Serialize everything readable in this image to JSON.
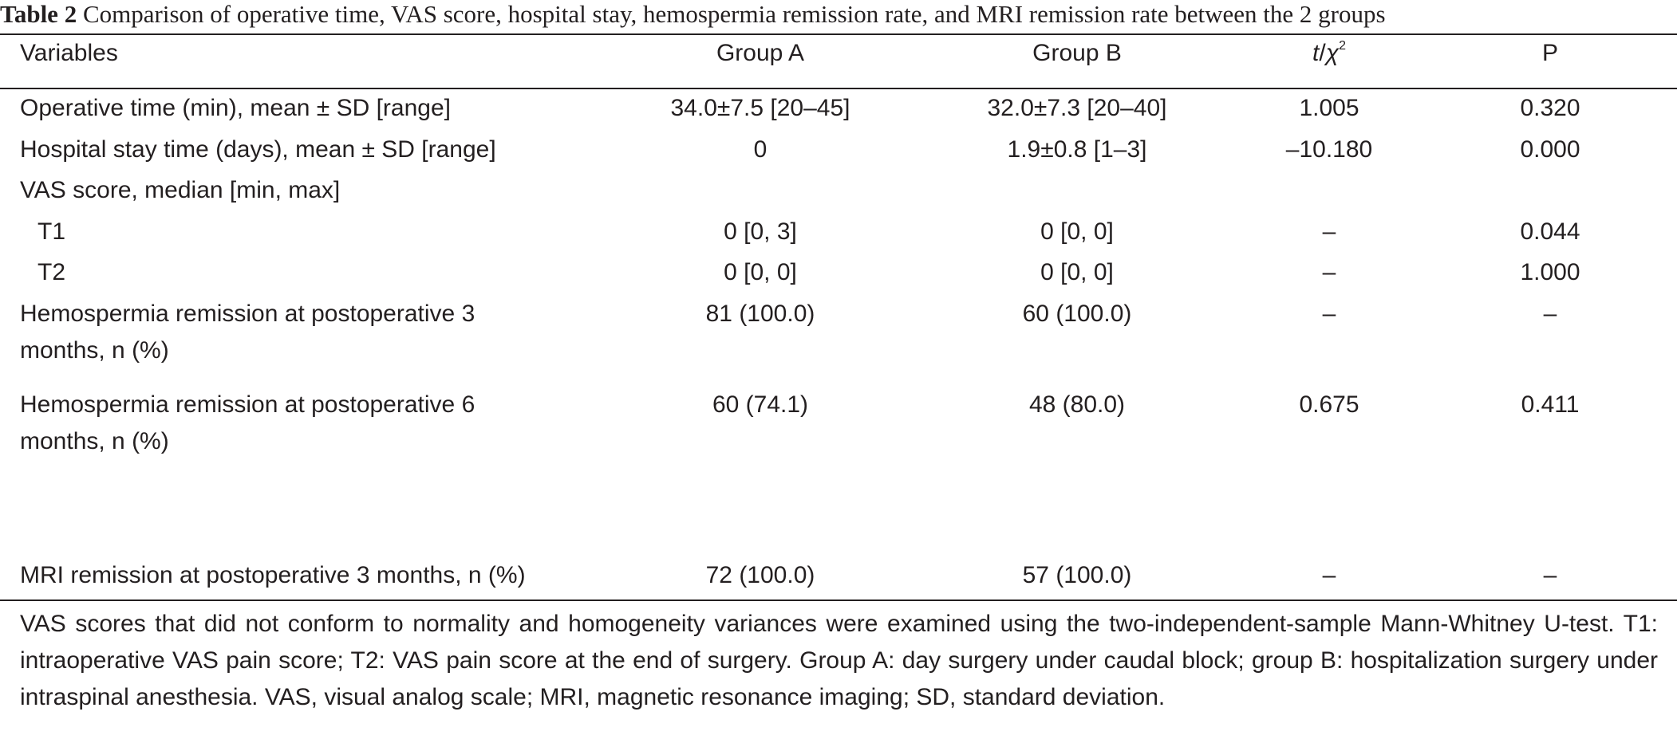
{
  "caption": {
    "label": "Table 2",
    "text": "Comparison of operative time, VAS score, hospital stay, hemospermia remission rate, and MRI remission rate between the 2 groups"
  },
  "header": {
    "variables": "Variables",
    "group_a": "Group A",
    "group_b": "Group B",
    "stat_t": "t",
    "stat_sep": "/",
    "stat_chi": "χ",
    "stat_sup": "2",
    "p": "P"
  },
  "rows": [
    {
      "variable": "Operative time (min), mean ± SD [range]",
      "group_a": "34.0±7.5 [20–45]",
      "group_b": "32.0±7.3 [20–40]",
      "stat": "1.005",
      "p": "0.320"
    },
    {
      "variable": "Hospital stay time (days), mean ± SD [range]",
      "group_a": "0",
      "group_b": "1.9±0.8 [1–3]",
      "stat": "–10.180",
      "p": "0.000"
    },
    {
      "variable": "VAS score, median [min, max]",
      "group_a": "",
      "group_b": "",
      "stat": "",
      "p": ""
    },
    {
      "variable": "T1",
      "group_a": "0 [0, 3]",
      "group_b": "0 [0, 0]",
      "stat": "–",
      "p": "0.044"
    },
    {
      "variable": "T2",
      "group_a": "0 [0, 0]",
      "group_b": "0 [0, 0]",
      "stat": "–",
      "p": "1.000"
    },
    {
      "variable_line1": "Hemospermia remission at postoperative 3",
      "variable_line2": "months, n (%)",
      "group_a": "81 (100.0)",
      "group_b": "60 (100.0)",
      "stat": "–",
      "p": "–"
    },
    {
      "variable_line1": "Hemospermia remission at postoperative 6",
      "variable_line2": "months, n (%)",
      "group_a": "60 (74.1)",
      "group_b": "48 (80.0)",
      "stat": "0.675",
      "p": "0.411"
    },
    {
      "variable": "MRI remission at postoperative 3 months, n (%)",
      "group_a": "72 (100.0)",
      "group_b": "57 (100.0)",
      "stat": "–",
      "p": "–"
    }
  ],
  "footnote": "VAS scores that did not conform to normality and homogeneity variances were examined using the two-independent-sample Mann-Whitney U-test. T1: intraoperative VAS pain score; T2: VAS pain score at the end of surgery. Group A: day surgery under caudal block; group B: hospitalization surgery under intraspinal anesthesia. VAS, visual analog scale; MRI, magnetic resonance imaging; SD, standard deviation."
}
